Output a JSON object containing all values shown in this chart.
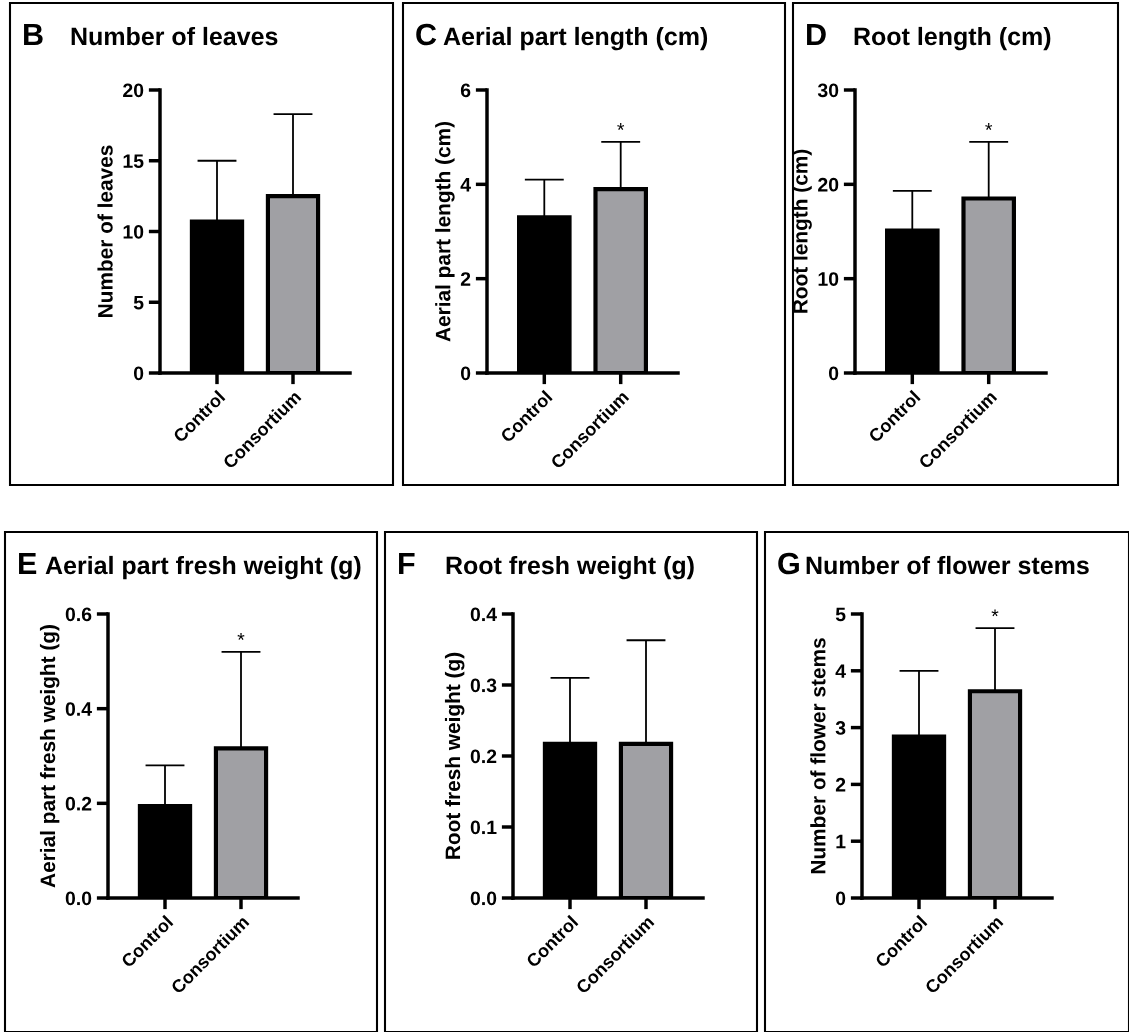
{
  "chart_data": [
    {
      "type": "bar",
      "title": "Number of leaves",
      "ylabel": "Number of leaves",
      "categories": [
        "Control",
        "Consortium"
      ],
      "values": [
        10.7,
        12.5
      ],
      "colors": [
        "#000000",
        "#a0a0a4"
      ],
      "errors": [
        [
          10.7,
          15.0
        ],
        [
          12.5,
          18.3
        ]
      ],
      "ylim": [
        0,
        20
      ],
      "yticks": [
        0,
        5,
        10,
        15,
        20
      ],
      "grid": false,
      "legend": false,
      "annotations": [
        "B"
      ]
    },
    {
      "type": "bar",
      "title": "Aerial part length (cm)",
      "ylabel": "Aerial part length (cm)",
      "categories": [
        "Control",
        "Consortium"
      ],
      "values": [
        3.3,
        3.9
      ],
      "colors": [
        "#000000",
        "#a0a0a4"
      ],
      "errors": [
        [
          3.3,
          4.1
        ],
        [
          3.9,
          4.9
        ]
      ],
      "ylim": [
        0,
        6
      ],
      "yticks": [
        0,
        2,
        4,
        6
      ],
      "grid": false,
      "legend": false,
      "annotations": [
        "C",
        {
          "text": "*",
          "x": "Consortium",
          "y": 4.9
        }
      ]
    },
    {
      "type": "bar",
      "title": "Root length (cm)",
      "ylabel": "Root length (cm)",
      "categories": [
        "Control",
        "Consortium"
      ],
      "values": [
        15.1,
        18.5
      ],
      "colors": [
        "#000000",
        "#a0a0a4"
      ],
      "errors": [
        [
          15.1,
          19.3
        ],
        [
          18.5,
          24.5
        ]
      ],
      "ylim": [
        0,
        30
      ],
      "yticks": [
        0,
        10,
        20,
        30
      ],
      "grid": false,
      "legend": false,
      "annotations": [
        "D",
        {
          "text": "*",
          "x": "Consortium",
          "y": 24.5
        }
      ]
    },
    {
      "type": "bar",
      "title": "Aerial part fresh weight (g)",
      "ylabel": "Aerial part fresh weight (g)",
      "categories": [
        "Control",
        "Consortium"
      ],
      "values": [
        0.194,
        0.316
      ],
      "colors": [
        "#000000",
        "#a0a0a4"
      ],
      "errors": [
        [
          0.194,
          0.28
        ],
        [
          0.316,
          0.52
        ]
      ],
      "ylim": [
        0,
        0.6
      ],
      "yticks": [
        {
          "value": 0,
          "label": "0.0"
        },
        0.2,
        0.4,
        0.6
      ],
      "grid": false,
      "legend": false,
      "annotations": [
        "E",
        {
          "text": "*",
          "x": "Consortium",
          "y": 0.52
        }
      ]
    },
    {
      "type": "bar",
      "title": "Root fresh weight (g)",
      "ylabel": "Root fresh weight (g)",
      "categories": [
        "Control",
        "Consortium"
      ],
      "values": [
        0.217,
        0.217
      ],
      "colors": [
        "#000000",
        "#a0a0a4"
      ],
      "errors": [
        [
          0.217,
          0.31
        ],
        [
          0.217,
          0.363
        ]
      ],
      "ylim": [
        0,
        0.4
      ],
      "yticks": [
        {
          "value": 0,
          "label": "0.0"
        },
        0.1,
        0.2,
        0.3,
        0.4
      ],
      "grid": false,
      "legend": false,
      "annotations": [
        "F"
      ]
    },
    {
      "type": "bar",
      "title": "Number of flower stems",
      "ylabel": "Number of flower stems",
      "categories": [
        "Control",
        "Consortium"
      ],
      "values": [
        2.84,
        3.64
      ],
      "colors": [
        "#000000",
        "#a0a0a4"
      ],
      "errors": [
        [
          2.84,
          4.0
        ],
        [
          3.64,
          4.75
        ]
      ],
      "ylim": [
        0,
        5
      ],
      "yticks": [
        0,
        1,
        2,
        3,
        4,
        5
      ],
      "grid": false,
      "legend": false,
      "annotations": [
        "G",
        {
          "text": "*",
          "x": "Consortium",
          "y": 4.75
        }
      ]
    }
  ]
}
